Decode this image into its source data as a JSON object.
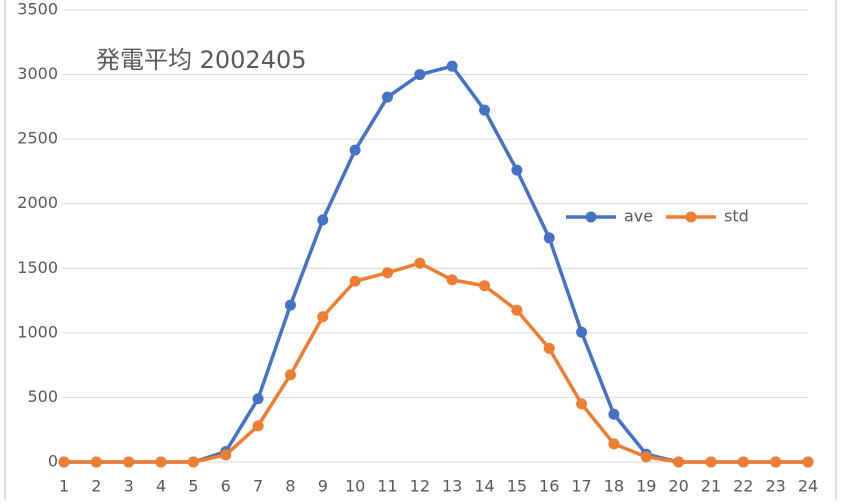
{
  "chart_data": {
    "type": "line",
    "title": "発電平均 2002405",
    "categories": [
      "1",
      "2",
      "3",
      "4",
      "5",
      "6",
      "7",
      "8",
      "9",
      "10",
      "11",
      "12",
      "13",
      "14",
      "15",
      "16",
      "17",
      "18",
      "19",
      "20",
      "21",
      "22",
      "23",
      "24"
    ],
    "series": [
      {
        "name": "ave",
        "color": "#4472c4",
        "values": [
          0,
          0,
          0,
          0,
          0,
          80,
          490,
          1215,
          1875,
          2415,
          2825,
          3000,
          3065,
          2725,
          2260,
          1735,
          1005,
          370,
          60,
          0,
          0,
          0,
          0,
          0
        ]
      },
      {
        "name": "std",
        "color": "#ed7d31",
        "values": [
          0,
          0,
          0,
          0,
          0,
          55,
          280,
          675,
          1125,
          1400,
          1465,
          1540,
          1410,
          1365,
          1175,
          880,
          450,
          140,
          40,
          0,
          0,
          0,
          0,
          0
        ]
      }
    ],
    "ylim": [
      0,
      3500
    ],
    "yticks": [
      0,
      500,
      1000,
      1500,
      2000,
      2500,
      3000,
      3500
    ],
    "grid": true,
    "legend": "right"
  }
}
